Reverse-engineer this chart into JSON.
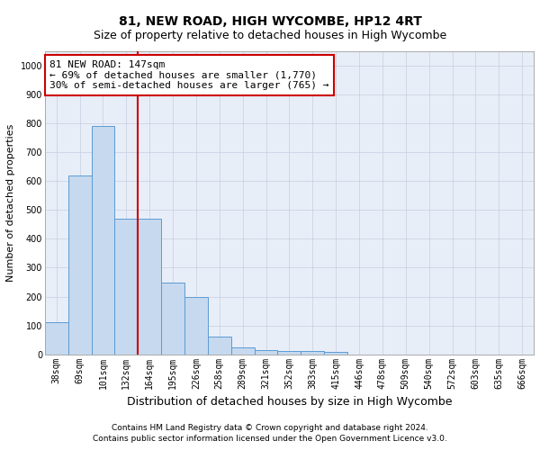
{
  "title": "81, NEW ROAD, HIGH WYCOMBE, HP12 4RT",
  "subtitle": "Size of property relative to detached houses in High Wycombe",
  "xlabel": "Distribution of detached houses by size in High Wycombe",
  "ylabel": "Number of detached properties",
  "categories": [
    "38sqm",
    "69sqm",
    "101sqm",
    "132sqm",
    "164sqm",
    "195sqm",
    "226sqm",
    "258sqm",
    "289sqm",
    "321sqm",
    "352sqm",
    "383sqm",
    "415sqm",
    "446sqm",
    "478sqm",
    "509sqm",
    "540sqm",
    "572sqm",
    "603sqm",
    "635sqm",
    "666sqm"
  ],
  "values": [
    110,
    620,
    790,
    470,
    470,
    250,
    200,
    60,
    25,
    15,
    10,
    10,
    8,
    0,
    0,
    0,
    0,
    0,
    0,
    0,
    0
  ],
  "bar_color": "#c6d9ee",
  "bar_edge_color": "#5b9bd5",
  "vline_pos": 3.5,
  "vline_color": "#cc0000",
  "annotation_text": "81 NEW ROAD: 147sqm\n← 69% of detached houses are smaller (1,770)\n30% of semi-detached houses are larger (765) →",
  "annotation_box_color": "#ffffff",
  "annotation_box_edge": "#cc0000",
  "ylim": [
    0,
    1050
  ],
  "yticks": [
    0,
    100,
    200,
    300,
    400,
    500,
    600,
    700,
    800,
    900,
    1000
  ],
  "footer_line1": "Contains HM Land Registry data © Crown copyright and database right 2024.",
  "footer_line2": "Contains public sector information licensed under the Open Government Licence v3.0.",
  "plot_bg_color": "#e8eef8",
  "grid_color": "#c5cfe0",
  "title_fontsize": 10,
  "subtitle_fontsize": 9,
  "annot_fontsize": 8,
  "tick_fontsize": 7,
  "ylabel_fontsize": 8,
  "xlabel_fontsize": 9,
  "footer_fontsize": 6.5
}
